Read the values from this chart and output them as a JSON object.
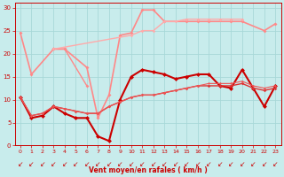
{
  "title": "",
  "xlabel": "Vent moyen/en rafales ( km/h )",
  "bg_color": "#c8ecec",
  "grid_color": "#a8d8d8",
  "xlim": [
    -0.5,
    23.5
  ],
  "ylim": [
    0,
    31
  ],
  "yticks": [
    0,
    5,
    10,
    15,
    20,
    25,
    30
  ],
  "xticks": [
    0,
    1,
    2,
    3,
    4,
    5,
    6,
    7,
    8,
    9,
    10,
    11,
    12,
    13,
    14,
    15,
    16,
    17,
    18,
    19,
    20,
    21,
    22,
    23
  ],
  "series": [
    {
      "x": [
        0,
        1,
        3,
        4,
        6,
        7,
        8,
        9,
        10,
        11,
        12,
        13,
        15,
        16,
        17,
        19,
        20,
        22,
        23
      ],
      "y": [
        24.5,
        15.5,
        21,
        21,
        17,
        6,
        11,
        24,
        24.5,
        29.5,
        29.5,
        27,
        27,
        27,
        27,
        27,
        27,
        25,
        26.5
      ],
      "color": "#ff8888",
      "lw": 1.2,
      "marker": "D",
      "ms": 2.0
    },
    {
      "x": [
        3,
        4,
        6
      ],
      "y": [
        21,
        21,
        13
      ],
      "color": "#ff8888",
      "lw": 1.0,
      "marker": "D",
      "ms": 2.0
    },
    {
      "x": [
        3,
        10,
        11,
        12,
        13,
        14,
        15,
        16,
        17,
        18,
        19,
        20
      ],
      "y": [
        21,
        24,
        25,
        25,
        27,
        27,
        27.5,
        27.5,
        27.5,
        27.5,
        27.5,
        27.5
      ],
      "color": "#ffaaaa",
      "lw": 1.0,
      "marker": "D",
      "ms": 1.8
    },
    {
      "x": [
        0,
        1,
        2,
        3,
        4,
        5,
        6,
        7,
        8,
        9,
        10,
        11,
        12,
        13,
        14,
        15,
        16,
        17,
        18,
        19,
        20,
        21,
        22,
        23
      ],
      "y": [
        10.5,
        6,
        6.5,
        8.5,
        7,
        6,
        6,
        2,
        1,
        10,
        15,
        16.5,
        16,
        15.5,
        14.5,
        15,
        15.5,
        15.5,
        13,
        12.5,
        16.5,
        12.5,
        8.5,
        13
      ],
      "color": "#cc0000",
      "lw": 1.5,
      "marker": "D",
      "ms": 2.5
    },
    {
      "x": [
        0,
        1,
        2,
        3,
        4,
        5,
        6,
        7,
        8,
        9,
        10,
        11,
        12,
        13,
        14,
        15,
        16,
        17,
        18,
        19,
        20,
        21,
        22,
        23
      ],
      "y": [
        10.5,
        6.5,
        7,
        8.5,
        8,
        7.5,
        7,
        7,
        8.5,
        9.5,
        10.5,
        11,
        11,
        11.5,
        12,
        12.5,
        13,
        13,
        13,
        13,
        13.5,
        12.5,
        12,
        12.5
      ],
      "color": "#dd3333",
      "lw": 1.0,
      "marker": "D",
      "ms": 1.8
    },
    {
      "x": [
        0,
        1,
        2,
        3,
        4,
        5,
        6,
        7,
        8,
        9,
        10,
        11,
        12,
        13,
        14,
        15,
        16,
        17,
        18,
        19,
        20,
        21,
        22,
        23
      ],
      "y": [
        10.5,
        6.5,
        7,
        8.5,
        8,
        7.5,
        7,
        7,
        8.5,
        9.5,
        10.5,
        11,
        11,
        11.5,
        12,
        12.5,
        13,
        13.5,
        13.5,
        13.5,
        14,
        13,
        12.5,
        13
      ],
      "color": "#ee5555",
      "lw": 0.8,
      "marker": "D",
      "ms": 1.5
    }
  ]
}
